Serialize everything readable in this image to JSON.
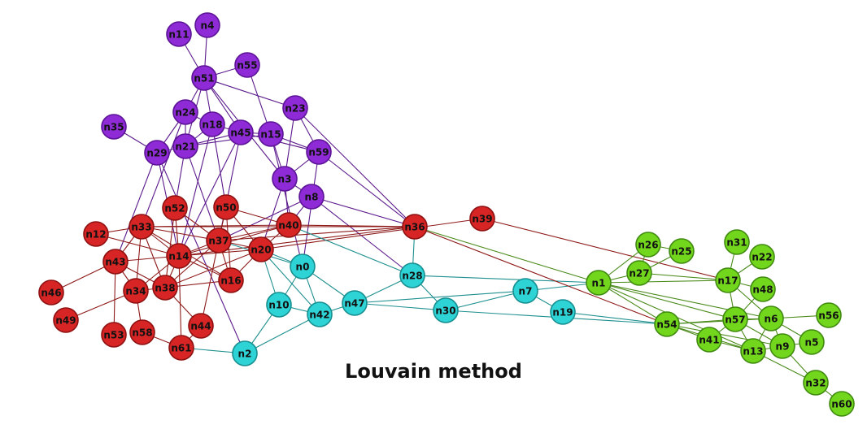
{
  "caption": "Louvain method",
  "communities": {
    "purple": {
      "fill": "#8f2bd6",
      "stroke": "#5c1396",
      "edge": "#5b1a8c"
    },
    "red": {
      "fill": "#d72525",
      "stroke": "#8e1111",
      "edge": "#8e1a1a"
    },
    "cyan": {
      "fill": "#2ed3d6",
      "stroke": "#178e90",
      "edge": "#1e8f8f"
    },
    "green": {
      "fill": "#72d61d",
      "stroke": "#3f8a0f",
      "edge": "#4a8a1a"
    }
  },
  "nodes": [
    {
      "id": "n11",
      "label": "n11",
      "c": "purple"
    },
    {
      "id": "n4",
      "label": "n4",
      "c": "purple"
    },
    {
      "id": "n55",
      "label": "n55",
      "c": "purple"
    },
    {
      "id": "n51",
      "label": "n51",
      "c": "purple"
    },
    {
      "id": "n23",
      "label": "n23",
      "c": "purple"
    },
    {
      "id": "n24",
      "label": "n24",
      "c": "purple"
    },
    {
      "id": "n18",
      "label": "n18",
      "c": "purple"
    },
    {
      "id": "n35",
      "label": "n35",
      "c": "purple"
    },
    {
      "id": "n45",
      "label": "n45",
      "c": "purple"
    },
    {
      "id": "n15",
      "label": "n15",
      "c": "purple"
    },
    {
      "id": "n21",
      "label": "n21",
      "c": "purple"
    },
    {
      "id": "n29",
      "label": "n29",
      "c": "purple"
    },
    {
      "id": "n59",
      "label": "n59",
      "c": "purple"
    },
    {
      "id": "n3",
      "label": "n3",
      "c": "purple"
    },
    {
      "id": "n8",
      "label": "n8",
      "c": "purple"
    },
    {
      "id": "n52",
      "label": "n52",
      "c": "red"
    },
    {
      "id": "n50",
      "label": "n50",
      "c": "red"
    },
    {
      "id": "n33",
      "label": "n33",
      "c": "red"
    },
    {
      "id": "n12",
      "label": "n12",
      "c": "red"
    },
    {
      "id": "n40",
      "label": "n40",
      "c": "red"
    },
    {
      "id": "n36",
      "label": "n36",
      "c": "red"
    },
    {
      "id": "n39",
      "label": "n39",
      "c": "red"
    },
    {
      "id": "n37",
      "label": "n37",
      "c": "red"
    },
    {
      "id": "n20",
      "label": "n20",
      "c": "red"
    },
    {
      "id": "n14",
      "label": "n14",
      "c": "red"
    },
    {
      "id": "n43",
      "label": "n43",
      "c": "red"
    },
    {
      "id": "n16",
      "label": "n16",
      "c": "red"
    },
    {
      "id": "n38",
      "label": "n38",
      "c": "red"
    },
    {
      "id": "n34",
      "label": "n34",
      "c": "red"
    },
    {
      "id": "n46",
      "label": "n46",
      "c": "red"
    },
    {
      "id": "n49",
      "label": "n49",
      "c": "red"
    },
    {
      "id": "n44",
      "label": "n44",
      "c": "red"
    },
    {
      "id": "n53",
      "label": "n53",
      "c": "red"
    },
    {
      "id": "n58",
      "label": "n58",
      "c": "red"
    },
    {
      "id": "n61",
      "label": "n61",
      "c": "red"
    },
    {
      "id": "n0",
      "label": "n0",
      "c": "cyan"
    },
    {
      "id": "n28",
      "label": "n28",
      "c": "cyan"
    },
    {
      "id": "n10",
      "label": "n10",
      "c": "cyan"
    },
    {
      "id": "n42",
      "label": "n42",
      "c": "cyan"
    },
    {
      "id": "n47",
      "label": "n47",
      "c": "cyan"
    },
    {
      "id": "n30",
      "label": "n30",
      "c": "cyan"
    },
    {
      "id": "n7",
      "label": "n7",
      "c": "cyan"
    },
    {
      "id": "n19",
      "label": "n19",
      "c": "cyan"
    },
    {
      "id": "n2",
      "label": "n2",
      "c": "cyan"
    },
    {
      "id": "n1",
      "label": "n1",
      "c": "green"
    },
    {
      "id": "n26",
      "label": "n26",
      "c": "green"
    },
    {
      "id": "n25",
      "label": "n25",
      "c": "green"
    },
    {
      "id": "n27",
      "label": "n27",
      "c": "green"
    },
    {
      "id": "n31",
      "label": "n31",
      "c": "green"
    },
    {
      "id": "n22",
      "label": "n22",
      "c": "green"
    },
    {
      "id": "n17",
      "label": "n17",
      "c": "green"
    },
    {
      "id": "n48",
      "label": "n48",
      "c": "green"
    },
    {
      "id": "n54",
      "label": "n54",
      "c": "green"
    },
    {
      "id": "n57",
      "label": "n57",
      "c": "green"
    },
    {
      "id": "n6",
      "label": "n6",
      "c": "green"
    },
    {
      "id": "n56",
      "label": "n56",
      "c": "green"
    },
    {
      "id": "n41",
      "label": "n41",
      "c": "green"
    },
    {
      "id": "n13",
      "label": "n13",
      "c": "green"
    },
    {
      "id": "n9",
      "label": "n9",
      "c": "green"
    },
    {
      "id": "n5",
      "label": "n5",
      "c": "green"
    },
    {
      "id": "n32",
      "label": "n32",
      "c": "green"
    },
    {
      "id": "n60",
      "label": "n60",
      "c": "green"
    }
  ],
  "edges": [
    [
      "n11",
      "n51"
    ],
    [
      "n4",
      "n51"
    ],
    [
      "n55",
      "n51"
    ],
    [
      "n51",
      "n24"
    ],
    [
      "n51",
      "n18"
    ],
    [
      "n51",
      "n21"
    ],
    [
      "n51",
      "n23"
    ],
    [
      "n51",
      "n45"
    ],
    [
      "n51",
      "n3"
    ],
    [
      "n55",
      "n15"
    ],
    [
      "n23",
      "n3"
    ],
    [
      "n23",
      "n59"
    ],
    [
      "n24",
      "n18"
    ],
    [
      "n24",
      "n21"
    ],
    [
      "n24",
      "n29"
    ],
    [
      "n18",
      "n21"
    ],
    [
      "n18",
      "n45"
    ],
    [
      "n35",
      "n29"
    ],
    [
      "n29",
      "n21"
    ],
    [
      "n21",
      "n45"
    ],
    [
      "n21",
      "n15"
    ],
    [
      "n45",
      "n15"
    ],
    [
      "n45",
      "n59"
    ],
    [
      "n15",
      "n59"
    ],
    [
      "n15",
      "n3"
    ],
    [
      "n59",
      "n3"
    ],
    [
      "n3",
      "n8"
    ],
    [
      "n24",
      "n33"
    ],
    [
      "n29",
      "n43"
    ],
    [
      "n29",
      "n14"
    ],
    [
      "n29",
      "n2"
    ],
    [
      "n21",
      "n37"
    ],
    [
      "n21",
      "n52"
    ],
    [
      "n18",
      "n14"
    ],
    [
      "n18",
      "n50"
    ],
    [
      "n45",
      "n37"
    ],
    [
      "n45",
      "n14"
    ],
    [
      "n15",
      "n0"
    ],
    [
      "n3",
      "n40"
    ],
    [
      "n3",
      "n20"
    ],
    [
      "n8",
      "n40"
    ],
    [
      "n8",
      "n37"
    ],
    [
      "n8",
      "n36"
    ],
    [
      "n8",
      "n28"
    ],
    [
      "n59",
      "n36"
    ],
    [
      "n23",
      "n36"
    ],
    [
      "n59",
      "n0"
    ],
    [
      "n33",
      "n12"
    ],
    [
      "n33",
      "n43"
    ],
    [
      "n33",
      "n14"
    ],
    [
      "n33",
      "n34"
    ],
    [
      "n33",
      "n37"
    ],
    [
      "n33",
      "n38"
    ],
    [
      "n33",
      "n16"
    ],
    [
      "n33",
      "n36"
    ],
    [
      "n33",
      "n40"
    ],
    [
      "n52",
      "n14"
    ],
    [
      "n52",
      "n38"
    ],
    [
      "n52",
      "n37"
    ],
    [
      "n50",
      "n37"
    ],
    [
      "n50",
      "n20"
    ],
    [
      "n50",
      "n40"
    ],
    [
      "n50",
      "n16"
    ],
    [
      "n40",
      "n36"
    ],
    [
      "n40",
      "n37"
    ],
    [
      "n40",
      "n20"
    ],
    [
      "n40",
      "n14"
    ],
    [
      "n36",
      "n14"
    ],
    [
      "n36",
      "n37"
    ],
    [
      "n39",
      "n20"
    ],
    [
      "n39",
      "n17"
    ],
    [
      "n37",
      "n14"
    ],
    [
      "n37",
      "n20"
    ],
    [
      "n37",
      "n44"
    ],
    [
      "n37",
      "n38"
    ],
    [
      "n37",
      "n16"
    ],
    [
      "n20",
      "n14"
    ],
    [
      "n20",
      "n16"
    ],
    [
      "n20",
      "n38"
    ],
    [
      "n14",
      "n43"
    ],
    [
      "n14",
      "n34"
    ],
    [
      "n14",
      "n38"
    ],
    [
      "n14",
      "n16"
    ],
    [
      "n14",
      "n61"
    ],
    [
      "n43",
      "n46"
    ],
    [
      "n43",
      "n34"
    ],
    [
      "n43",
      "n53"
    ],
    [
      "n43",
      "n38"
    ],
    [
      "n34",
      "n49"
    ],
    [
      "n34",
      "n38"
    ],
    [
      "n34",
      "n58"
    ],
    [
      "n38",
      "n16"
    ],
    [
      "n38",
      "n44"
    ],
    [
      "n44",
      "n61"
    ],
    [
      "n58",
      "n61"
    ],
    [
      "n12",
      "n14"
    ],
    [
      "n0",
      "n10"
    ],
    [
      "n0",
      "n42"
    ],
    [
      "n0",
      "n47"
    ],
    [
      "n0",
      "n37"
    ],
    [
      "n0",
      "n20"
    ],
    [
      "n28",
      "n47"
    ],
    [
      "n28",
      "n30"
    ],
    [
      "n28",
      "n40"
    ],
    [
      "n28",
      "n36"
    ],
    [
      "n10",
      "n42"
    ],
    [
      "n10",
      "n2"
    ],
    [
      "n10",
      "n20"
    ],
    [
      "n42",
      "n47"
    ],
    [
      "n42",
      "n2"
    ],
    [
      "n42",
      "n20"
    ],
    [
      "n47",
      "n30"
    ],
    [
      "n47",
      "n7"
    ],
    [
      "n30",
      "n7"
    ],
    [
      "n30",
      "n54"
    ],
    [
      "n7",
      "n19"
    ],
    [
      "n7",
      "n1"
    ],
    [
      "n19",
      "n54"
    ],
    [
      "n28",
      "n1"
    ],
    [
      "n2",
      "n61"
    ],
    [
      "n1",
      "n36"
    ],
    [
      "n1",
      "n27"
    ],
    [
      "n1",
      "n26"
    ],
    [
      "n1",
      "n17"
    ],
    [
      "n1",
      "n54"
    ],
    [
      "n1",
      "n57"
    ],
    [
      "n1",
      "n13"
    ],
    [
      "n1",
      "n6"
    ],
    [
      "n26",
      "n27"
    ],
    [
      "n25",
      "n27"
    ],
    [
      "n25",
      "n26"
    ],
    [
      "n27",
      "n17"
    ],
    [
      "n31",
      "n17"
    ],
    [
      "n22",
      "n17"
    ],
    [
      "n17",
      "n57"
    ],
    [
      "n17",
      "n6"
    ],
    [
      "n17",
      "n48"
    ],
    [
      "n48",
      "n57"
    ],
    [
      "n54",
      "n57"
    ],
    [
      "n54",
      "n41"
    ],
    [
      "n54",
      "n6"
    ],
    [
      "n54",
      "n13"
    ],
    [
      "n54",
      "n9"
    ],
    [
      "n57",
      "n6"
    ],
    [
      "n57",
      "n41"
    ],
    [
      "n57",
      "n13"
    ],
    [
      "n57",
      "n9"
    ],
    [
      "n6",
      "n56"
    ],
    [
      "n6",
      "n9"
    ],
    [
      "n6",
      "n5"
    ],
    [
      "n6",
      "n13"
    ],
    [
      "n41",
      "n13"
    ],
    [
      "n9",
      "n5"
    ],
    [
      "n9",
      "n13"
    ],
    [
      "n9",
      "n32"
    ],
    [
      "n13",
      "n32"
    ],
    [
      "n32",
      "n60"
    ],
    [
      "n36",
      "n54"
    ]
  ]
}
